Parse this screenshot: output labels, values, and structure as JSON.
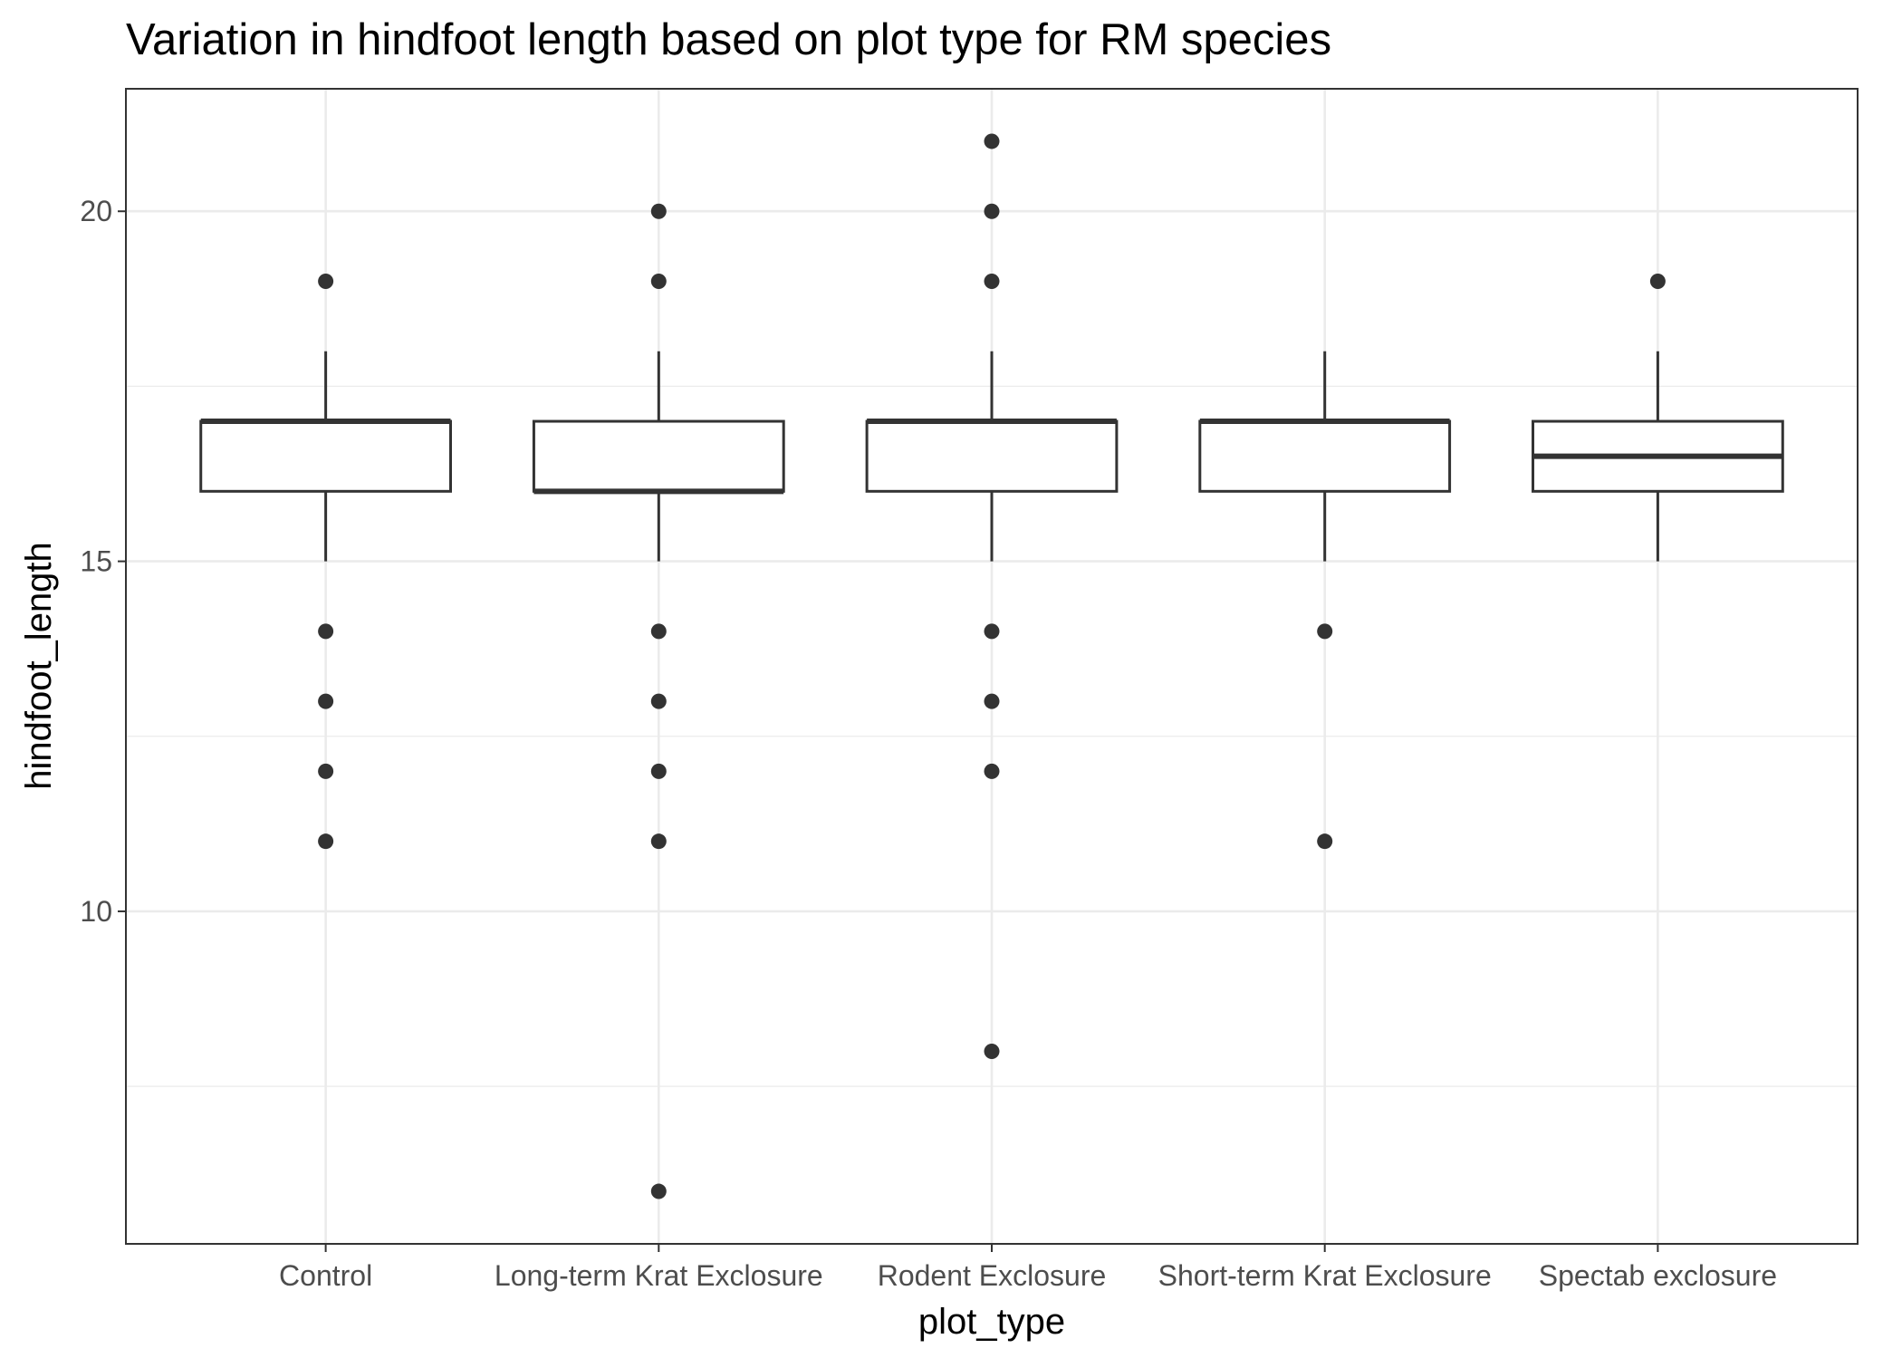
{
  "chart_data": {
    "type": "boxplot",
    "title": "Variation in hindfoot length based on plot type for RM species",
    "xlabel": "plot_type",
    "ylabel": "hindfoot_length",
    "ylim": [
      5.25,
      21.75
    ],
    "y_ticks": [
      10,
      15,
      20
    ],
    "y_minor_ticks": [
      7.5,
      12.5,
      17.5
    ],
    "grid": true,
    "categories": [
      "Control",
      "Long-term Krat Exclosure",
      "Rodent Exclosure",
      "Short-term Krat Exclosure",
      "Spectab exclosure"
    ],
    "boxes": [
      {
        "category": "Control",
        "lower_whisker": 15,
        "q1": 16,
        "median": 17,
        "q3": 17,
        "upper_whisker": 18,
        "outliers": [
          19,
          14,
          13,
          12,
          11
        ]
      },
      {
        "category": "Long-term Krat Exclosure",
        "lower_whisker": 15,
        "q1": 16,
        "median": 16,
        "q3": 17,
        "upper_whisker": 18,
        "outliers": [
          20,
          19,
          14,
          13,
          12,
          11,
          6
        ]
      },
      {
        "category": "Rodent Exclosure",
        "lower_whisker": 15,
        "q1": 16,
        "median": 17,
        "q3": 17,
        "upper_whisker": 18,
        "outliers": [
          21,
          20,
          19,
          14,
          13,
          12,
          8
        ]
      },
      {
        "category": "Short-term Krat Exclosure",
        "lower_whisker": 15,
        "q1": 16,
        "median": 17,
        "q3": 17,
        "upper_whisker": 18,
        "outliers": [
          14,
          11
        ]
      },
      {
        "category": "Spectab exclosure",
        "lower_whisker": 15,
        "q1": 16,
        "median": 16.5,
        "q3": 17,
        "upper_whisker": 18,
        "outliers": [
          19
        ]
      }
    ],
    "colors": {
      "box_line": "#333333",
      "box_fill": "#ffffff",
      "grid": "#ebebeb",
      "panel_border": "#333333",
      "tick_text": "#4d4d4d"
    }
  }
}
